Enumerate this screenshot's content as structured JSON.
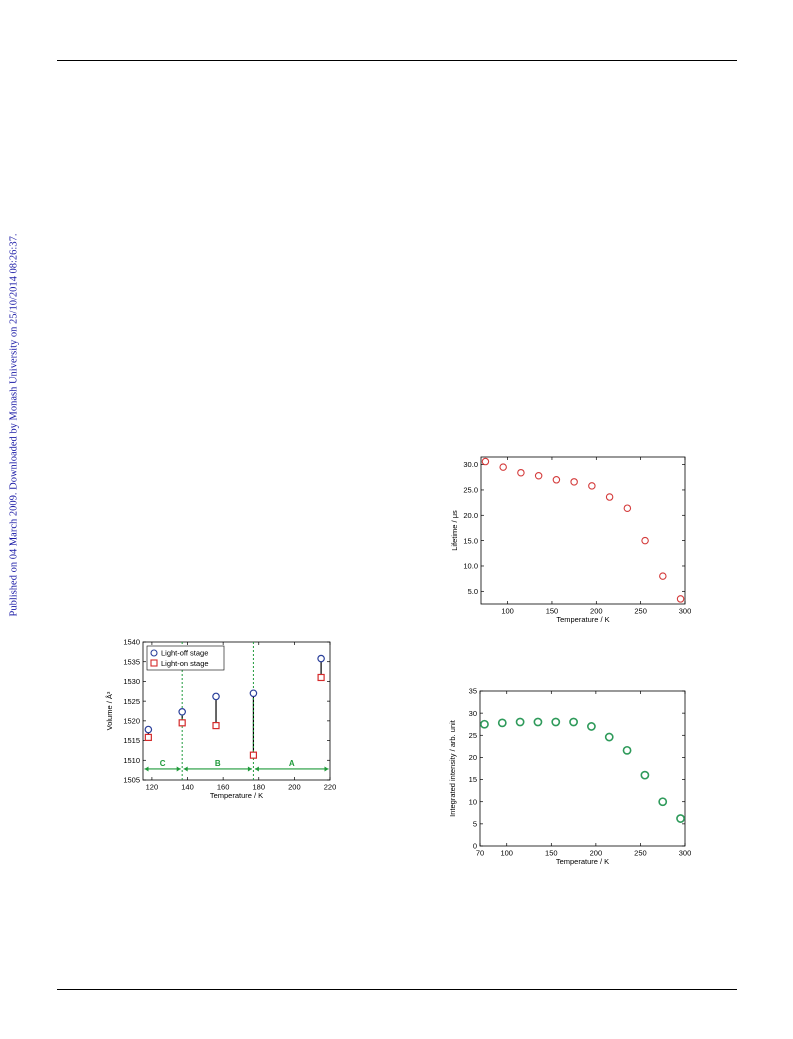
{
  "side_note": "Published on 04 March 2009. Downloaded by Monash University on 25/10/2014 08:26:37.",
  "chart_data": [
    {
      "id": "volume",
      "type": "scatter",
      "xlabel": "Temperature / K",
      "ylabel": "Volume / Å³",
      "xlim": [
        115,
        220
      ],
      "ylim": [
        1505,
        1540
      ],
      "xticks": [
        120,
        140,
        160,
        180,
        200,
        220
      ],
      "yticks": [
        1505,
        1510,
        1515,
        1520,
        1525,
        1530,
        1535,
        1540
      ],
      "grid": false,
      "legend_position": "top-left",
      "series": [
        {
          "name": "Light-off stage",
          "marker": "circle",
          "color": "#2a3f9a",
          "x": [
            118,
            137,
            156,
            177,
            215
          ],
          "y": [
            1517.8,
            1522.3,
            1526.2,
            1527.0,
            1535.8
          ]
        },
        {
          "name": "Light-on stage",
          "marker": "square",
          "color": "#d42a2a",
          "x": [
            118,
            137,
            156,
            177,
            215
          ],
          "y": [
            1515.8,
            1519.5,
            1518.8,
            1511.3,
            1531.0
          ]
        }
      ],
      "region_boundaries": [
        137,
        177
      ],
      "regions": [
        {
          "label": "C",
          "x": [
            115,
            137
          ]
        },
        {
          "label": "B",
          "x": [
            137,
            177
          ]
        },
        {
          "label": "A",
          "x": [
            177,
            220
          ]
        }
      ],
      "region_color": "#1f9a3a"
    },
    {
      "id": "lifetime",
      "type": "scatter",
      "xlabel": "Temperature / K",
      "ylabel": "Lifetime / μs",
      "xlim": [
        70,
        300
      ],
      "ylim": [
        2.5,
        31.5
      ],
      "xticks": [
        100,
        150,
        200,
        250,
        300
      ],
      "yticks": [
        5.0,
        10.0,
        15.0,
        20.0,
        25.0,
        30.0
      ],
      "ytick_decimals": 1,
      "grid": false,
      "color": "#d43b3b",
      "series": [
        {
          "x": [
            75,
            95,
            115,
            135,
            155,
            175,
            195,
            215,
            235,
            255,
            275,
            295
          ],
          "y": [
            30.6,
            29.5,
            28.4,
            27.8,
            27.0,
            26.6,
            25.8,
            23.6,
            21.4,
            15.0,
            8.0,
            3.5
          ]
        }
      ]
    },
    {
      "id": "intensity",
      "type": "scatter",
      "xlabel": "Temperature / K",
      "ylabel": "Integrated intensity / arb. unit",
      "xlim": [
        70,
        300
      ],
      "ylim": [
        0,
        35
      ],
      "xticks": [
        70,
        100,
        150,
        200,
        250,
        300
      ],
      "yticks": [
        0,
        5,
        10,
        15,
        20,
        25,
        30,
        35
      ],
      "grid": false,
      "color": "#2e9a5a",
      "series": [
        {
          "x": [
            75,
            95,
            115,
            135,
            155,
            175,
            195,
            215,
            235,
            255,
            275,
            295
          ],
          "y": [
            27.5,
            27.8,
            28.0,
            28.0,
            28.0,
            28.0,
            27.0,
            24.6,
            21.6,
            16.0,
            10.0,
            6.2
          ]
        }
      ]
    }
  ]
}
